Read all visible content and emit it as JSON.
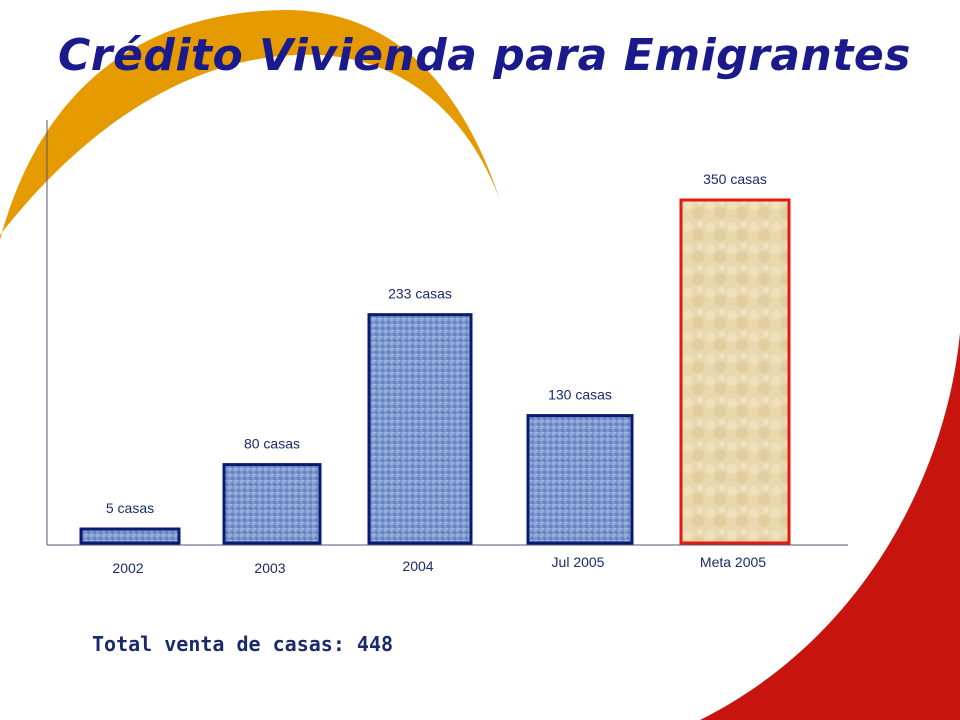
{
  "slide": {
    "title": "Crédito Vivienda para Emigrantes",
    "total": "Total venta de casas: 448"
  },
  "colors": {
    "title": "#1a1a8c",
    "swoosh_orange": "#e59a00",
    "swoosh_red": "#c7140f",
    "bar_fill": "#7d97cf",
    "bar_border": "#0a1a6e",
    "target_fill": "#e9d7ad",
    "target_border": "#e01b12"
  },
  "chart_data": {
    "type": "bar",
    "title": "",
    "xlabel": "",
    "ylabel": "",
    "ylim": [
      0,
      350
    ],
    "grid": false,
    "legend": "none",
    "categories": [
      "2002",
      "2003",
      "2004",
      "Jul 2005",
      "Meta 2005"
    ],
    "values": [
      5,
      80,
      233,
      130,
      350
    ],
    "data_labels": [
      "5 casas",
      "80 casas",
      "233 casas",
      "130 casas",
      "350 casas"
    ],
    "highlight": [
      "actual",
      "actual",
      "actual",
      "actual",
      "target"
    ]
  }
}
